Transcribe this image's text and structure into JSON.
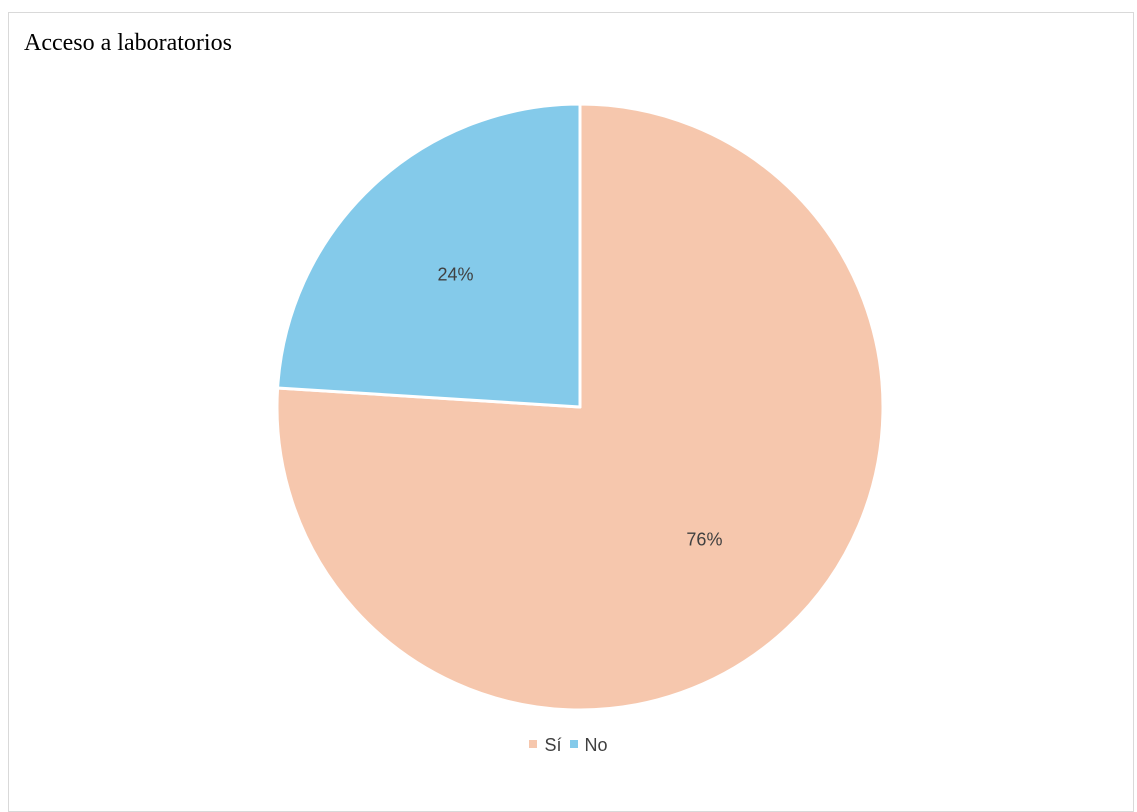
{
  "chart_data": {
    "type": "pie",
    "title": "Acceso a laboratorios",
    "categories": [
      "Sí",
      "No"
    ],
    "values": [
      76,
      24
    ],
    "labels": [
      "76%",
      "24%"
    ],
    "colors": [
      "#F6C7AD",
      "#84CAEA"
    ],
    "start_angle_deg": 0,
    "direction": "clockwise",
    "legend_position": "bottom",
    "label_color": "#404040"
  }
}
